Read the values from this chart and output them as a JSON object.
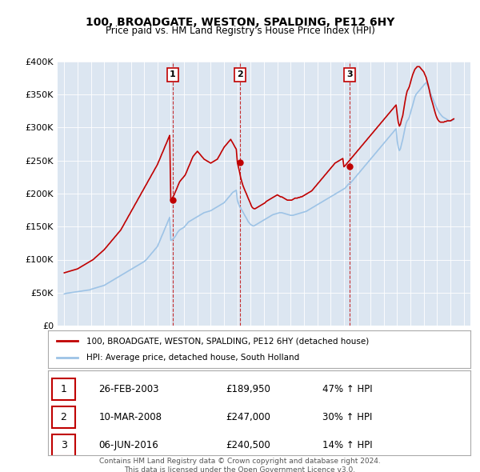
{
  "title": "100, BROADGATE, WESTON, SPALDING, PE12 6HY",
  "subtitle": "Price paid vs. HM Land Registry's House Price Index (HPI)",
  "legend_property": "100, BROADGATE, WESTON, SPALDING, PE12 6HY (detached house)",
  "legend_hpi": "HPI: Average price, detached house, South Holland",
  "footer": "Contains HM Land Registry data © Crown copyright and database right 2024.\nThis data is licensed under the Open Government Licence v3.0.",
  "sales": [
    {
      "num": 1,
      "date": "26-FEB-2003",
      "price": 189950,
      "pct": "47%",
      "dir": "↑"
    },
    {
      "num": 2,
      "date": "10-MAR-2008",
      "price": 247000,
      "pct": "30%",
      "dir": "↑"
    },
    {
      "num": 3,
      "date": "06-JUN-2016",
      "price": 240500,
      "pct": "14%",
      "dir": "↑"
    }
  ],
  "sale_years": [
    2003.15,
    2008.19,
    2016.44
  ],
  "ylim": [
    0,
    400000
  ],
  "yticks": [
    0,
    50000,
    100000,
    150000,
    200000,
    250000,
    300000,
    350000,
    400000
  ],
  "ytick_labels": [
    "£0",
    "£50K",
    "£100K",
    "£150K",
    "£200K",
    "£250K",
    "£300K",
    "£350K",
    "£400K"
  ],
  "xlim_start": 1994.5,
  "xlim_end": 2025.5,
  "bg_color": "#dce6f1",
  "plot_bg_color": "#dce6f1",
  "red_color": "#c00000",
  "blue_color": "#9dc3e6",
  "hpi_data_x": [
    1995.0,
    1995.08,
    1995.17,
    1995.25,
    1995.33,
    1995.42,
    1995.5,
    1995.58,
    1995.67,
    1995.75,
    1995.83,
    1995.92,
    1996.0,
    1996.08,
    1996.17,
    1996.25,
    1996.33,
    1996.42,
    1996.5,
    1996.58,
    1996.67,
    1996.75,
    1996.83,
    1996.92,
    1997.0,
    1997.08,
    1997.17,
    1997.25,
    1997.33,
    1997.42,
    1997.5,
    1997.58,
    1997.67,
    1997.75,
    1997.83,
    1997.92,
    1998.0,
    1998.08,
    1998.17,
    1998.25,
    1998.33,
    1998.42,
    1998.5,
    1998.58,
    1998.67,
    1998.75,
    1998.83,
    1998.92,
    1999.0,
    1999.08,
    1999.17,
    1999.25,
    1999.33,
    1999.42,
    1999.5,
    1999.58,
    1999.67,
    1999.75,
    1999.83,
    1999.92,
    2000.0,
    2000.08,
    2000.17,
    2000.25,
    2000.33,
    2000.42,
    2000.5,
    2000.58,
    2000.67,
    2000.75,
    2000.83,
    2000.92,
    2001.0,
    2001.08,
    2001.17,
    2001.25,
    2001.33,
    2001.42,
    2001.5,
    2001.58,
    2001.67,
    2001.75,
    2001.83,
    2001.92,
    2002.0,
    2002.08,
    2002.17,
    2002.25,
    2002.33,
    2002.42,
    2002.5,
    2002.58,
    2002.67,
    2002.75,
    2002.83,
    2002.92,
    2003.0,
    2003.08,
    2003.17,
    2003.25,
    2003.33,
    2003.42,
    2003.5,
    2003.58,
    2003.67,
    2003.75,
    2003.83,
    2003.92,
    2004.0,
    2004.08,
    2004.17,
    2004.25,
    2004.33,
    2004.42,
    2004.5,
    2004.58,
    2004.67,
    2004.75,
    2004.83,
    2004.92,
    2005.0,
    2005.08,
    2005.17,
    2005.25,
    2005.33,
    2005.42,
    2005.5,
    2005.58,
    2005.67,
    2005.75,
    2005.83,
    2005.92,
    2006.0,
    2006.08,
    2006.17,
    2006.25,
    2006.33,
    2006.42,
    2006.5,
    2006.58,
    2006.67,
    2006.75,
    2006.83,
    2006.92,
    2007.0,
    2007.08,
    2007.17,
    2007.25,
    2007.33,
    2007.42,
    2007.5,
    2007.58,
    2007.67,
    2007.75,
    2007.83,
    2007.92,
    2008.0,
    2008.08,
    2008.17,
    2008.25,
    2008.33,
    2008.42,
    2008.5,
    2008.58,
    2008.67,
    2008.75,
    2008.83,
    2008.92,
    2009.0,
    2009.08,
    2009.17,
    2009.25,
    2009.33,
    2009.42,
    2009.5,
    2009.58,
    2009.67,
    2009.75,
    2009.83,
    2009.92,
    2010.0,
    2010.08,
    2010.17,
    2010.25,
    2010.33,
    2010.42,
    2010.5,
    2010.58,
    2010.67,
    2010.75,
    2010.83,
    2010.92,
    2011.0,
    2011.08,
    2011.17,
    2011.25,
    2011.33,
    2011.42,
    2011.5,
    2011.58,
    2011.67,
    2011.75,
    2011.83,
    2011.92,
    2012.0,
    2012.08,
    2012.17,
    2012.25,
    2012.33,
    2012.42,
    2012.5,
    2012.58,
    2012.67,
    2012.75,
    2012.83,
    2012.92,
    2013.0,
    2013.08,
    2013.17,
    2013.25,
    2013.33,
    2013.42,
    2013.5,
    2013.58,
    2013.67,
    2013.75,
    2013.83,
    2013.92,
    2014.0,
    2014.08,
    2014.17,
    2014.25,
    2014.33,
    2014.42,
    2014.5,
    2014.58,
    2014.67,
    2014.75,
    2014.83,
    2014.92,
    2015.0,
    2015.08,
    2015.17,
    2015.25,
    2015.33,
    2015.42,
    2015.5,
    2015.58,
    2015.67,
    2015.75,
    2015.83,
    2015.92,
    2016.0,
    2016.08,
    2016.17,
    2016.25,
    2016.33,
    2016.42,
    2016.5,
    2016.58,
    2016.67,
    2016.75,
    2016.83,
    2016.92,
    2017.0,
    2017.08,
    2017.17,
    2017.25,
    2017.33,
    2017.42,
    2017.5,
    2017.58,
    2017.67,
    2017.75,
    2017.83,
    2017.92,
    2018.0,
    2018.08,
    2018.17,
    2018.25,
    2018.33,
    2018.42,
    2018.5,
    2018.58,
    2018.67,
    2018.75,
    2018.83,
    2018.92,
    2019.0,
    2019.08,
    2019.17,
    2019.25,
    2019.33,
    2019.42,
    2019.5,
    2019.58,
    2019.67,
    2019.75,
    2019.83,
    2019.92,
    2020.0,
    2020.08,
    2020.17,
    2020.25,
    2020.33,
    2020.42,
    2020.5,
    2020.58,
    2020.67,
    2020.75,
    2020.83,
    2020.92,
    2021.0,
    2021.08,
    2021.17,
    2021.25,
    2021.33,
    2021.42,
    2021.5,
    2021.58,
    2021.67,
    2021.75,
    2021.83,
    2021.92,
    2022.0,
    2022.08,
    2022.17,
    2022.25,
    2022.33,
    2022.42,
    2022.5,
    2022.58,
    2022.67,
    2022.75,
    2022.83,
    2022.92,
    2023.0,
    2023.08,
    2023.17,
    2023.25,
    2023.33,
    2023.42,
    2023.5,
    2023.58,
    2023.67,
    2023.75,
    2023.83,
    2023.92,
    2024.0,
    2024.08,
    2024.17,
    2024.25
  ],
  "hpi_data_y": [
    48000,
    48500,
    49000,
    49200,
    49500,
    49800,
    50000,
    50200,
    50500,
    50800,
    51000,
    51200,
    51500,
    51800,
    52000,
    52200,
    52500,
    52800,
    53000,
    53200,
    53500,
    53800,
    54000,
    54200,
    55000,
    55500,
    56000,
    56500,
    57000,
    57500,
    58000,
    58500,
    59000,
    59500,
    60000,
    60500,
    61000,
    62000,
    63000,
    64000,
    65000,
    66000,
    67000,
    68000,
    69000,
    70000,
    71000,
    72000,
    73000,
    74000,
    75000,
    76000,
    77000,
    78000,
    79000,
    80000,
    81000,
    82000,
    83000,
    84000,
    85000,
    86000,
    87000,
    88000,
    89000,
    90000,
    91000,
    92000,
    93000,
    94000,
    95000,
    96000,
    97000,
    98500,
    100000,
    102000,
    104000,
    106000,
    108000,
    110000,
    112000,
    114000,
    116000,
    118000,
    120000,
    124000,
    128000,
    132000,
    136000,
    140000,
    144000,
    148000,
    152000,
    156000,
    160000,
    164000,
    129000,
    130000,
    131000,
    133000,
    135000,
    138000,
    141000,
    143000,
    145000,
    146000,
    147000,
    148000,
    149000,
    151000,
    153000,
    155000,
    157000,
    158000,
    159000,
    160000,
    161000,
    162000,
    163000,
    164000,
    165000,
    166000,
    167000,
    168000,
    169000,
    170000,
    171000,
    171500,
    172000,
    172500,
    173000,
    173500,
    174000,
    175000,
    176000,
    177000,
    178000,
    179000,
    180000,
    181000,
    182000,
    183000,
    184000,
    185000,
    186000,
    188000,
    190000,
    192000,
    194000,
    196000,
    198000,
    200000,
    202000,
    203000,
    204000,
    205000,
    190000,
    185000,
    180000,
    178000,
    175000,
    172000,
    169000,
    166000,
    163000,
    160000,
    157000,
    155000,
    153000,
    152000,
    151000,
    151000,
    152000,
    153000,
    154000,
    155000,
    156000,
    157000,
    158000,
    159000,
    160000,
    161000,
    162000,
    163000,
    164000,
    165000,
    166000,
    167000,
    168000,
    168500,
    169000,
    169500,
    170000,
    170500,
    171000,
    171000,
    171000,
    170500,
    170000,
    169500,
    169000,
    168500,
    168000,
    167500,
    167000,
    167000,
    167000,
    167500,
    168000,
    168500,
    169000,
    169500,
    170000,
    170500,
    171000,
    171500,
    172000,
    172500,
    173000,
    174000,
    175000,
    176000,
    177000,
    178000,
    179000,
    180000,
    181000,
    182000,
    183000,
    184000,
    185000,
    186000,
    187000,
    188000,
    189000,
    190000,
    191000,
    192000,
    193000,
    194000,
    195000,
    196000,
    197000,
    198000,
    199000,
    200000,
    201000,
    202000,
    203000,
    204000,
    205000,
    206000,
    207000,
    208000,
    210000,
    212000,
    214000,
    215000,
    216000,
    218000,
    220000,
    222000,
    224000,
    226000,
    228000,
    230000,
    232000,
    234000,
    236000,
    238000,
    240000,
    242000,
    244000,
    246000,
    248000,
    250000,
    252000,
    254000,
    256000,
    258000,
    260000,
    262000,
    264000,
    266000,
    268000,
    270000,
    272000,
    274000,
    276000,
    278000,
    280000,
    282000,
    284000,
    286000,
    288000,
    290000,
    292000,
    294000,
    296000,
    298000,
    280000,
    270000,
    265000,
    268000,
    275000,
    282000,
    290000,
    298000,
    306000,
    310000,
    312000,
    316000,
    322000,
    328000,
    334000,
    340000,
    346000,
    350000,
    352000,
    354000,
    356000,
    358000,
    360000,
    362000,
    364000,
    366000,
    368000,
    365000,
    362000,
    358000,
    352000,
    348000,
    344000,
    340000,
    336000,
    332000,
    328000,
    325000,
    322000,
    320000,
    318000,
    316000,
    315000,
    314000,
    313000,
    312000,
    311000,
    310000,
    310000,
    310000,
    311000,
    312000
  ],
  "property_data_x": [
    1995.0,
    1995.08,
    1995.17,
    1995.25,
    1995.33,
    1995.42,
    1995.5,
    1995.58,
    1995.67,
    1995.75,
    1995.83,
    1995.92,
    1996.0,
    1996.08,
    1996.17,
    1996.25,
    1996.33,
    1996.42,
    1996.5,
    1996.58,
    1996.67,
    1996.75,
    1996.83,
    1996.92,
    1997.0,
    1997.08,
    1997.17,
    1997.25,
    1997.33,
    1997.42,
    1997.5,
    1997.58,
    1997.67,
    1997.75,
    1997.83,
    1997.92,
    1998.0,
    1998.08,
    1998.17,
    1998.25,
    1998.33,
    1998.42,
    1998.5,
    1998.58,
    1998.67,
    1998.75,
    1998.83,
    1998.92,
    1999.0,
    1999.08,
    1999.17,
    1999.25,
    1999.33,
    1999.42,
    1999.5,
    1999.58,
    1999.67,
    1999.75,
    1999.83,
    1999.92,
    2000.0,
    2000.08,
    2000.17,
    2000.25,
    2000.33,
    2000.42,
    2000.5,
    2000.58,
    2000.67,
    2000.75,
    2000.83,
    2000.92,
    2001.0,
    2001.08,
    2001.17,
    2001.25,
    2001.33,
    2001.42,
    2001.5,
    2001.58,
    2001.67,
    2001.75,
    2001.83,
    2001.92,
    2002.0,
    2002.08,
    2002.17,
    2002.25,
    2002.33,
    2002.42,
    2002.5,
    2002.58,
    2002.67,
    2002.75,
    2002.83,
    2002.92,
    2003.0,
    2003.08,
    2003.17,
    2003.25,
    2003.33,
    2003.42,
    2003.5,
    2003.58,
    2003.67,
    2003.75,
    2003.83,
    2003.92,
    2004.0,
    2004.08,
    2004.17,
    2004.25,
    2004.33,
    2004.42,
    2004.5,
    2004.58,
    2004.67,
    2004.75,
    2004.83,
    2004.92,
    2005.0,
    2005.08,
    2005.17,
    2005.25,
    2005.33,
    2005.42,
    2005.5,
    2005.58,
    2005.67,
    2005.75,
    2005.83,
    2005.92,
    2006.0,
    2006.08,
    2006.17,
    2006.25,
    2006.33,
    2006.42,
    2006.5,
    2006.58,
    2006.67,
    2006.75,
    2006.83,
    2006.92,
    2007.0,
    2007.08,
    2007.17,
    2007.25,
    2007.33,
    2007.42,
    2007.5,
    2007.58,
    2007.67,
    2007.75,
    2007.83,
    2007.92,
    2008.0,
    2008.08,
    2008.17,
    2008.25,
    2008.33,
    2008.42,
    2008.5,
    2008.58,
    2008.67,
    2008.75,
    2008.83,
    2008.92,
    2009.0,
    2009.08,
    2009.17,
    2009.25,
    2009.33,
    2009.42,
    2009.5,
    2009.58,
    2009.67,
    2009.75,
    2009.83,
    2009.92,
    2010.0,
    2010.08,
    2010.17,
    2010.25,
    2010.33,
    2010.42,
    2010.5,
    2010.58,
    2010.67,
    2010.75,
    2010.83,
    2010.92,
    2011.0,
    2011.08,
    2011.17,
    2011.25,
    2011.33,
    2011.42,
    2011.5,
    2011.58,
    2011.67,
    2011.75,
    2011.83,
    2011.92,
    2012.0,
    2012.08,
    2012.17,
    2012.25,
    2012.33,
    2012.42,
    2012.5,
    2012.58,
    2012.67,
    2012.75,
    2012.83,
    2012.92,
    2013.0,
    2013.08,
    2013.17,
    2013.25,
    2013.33,
    2013.42,
    2013.5,
    2013.58,
    2013.67,
    2013.75,
    2013.83,
    2013.92,
    2014.0,
    2014.08,
    2014.17,
    2014.25,
    2014.33,
    2014.42,
    2014.5,
    2014.58,
    2014.67,
    2014.75,
    2014.83,
    2014.92,
    2015.0,
    2015.08,
    2015.17,
    2015.25,
    2015.33,
    2015.42,
    2015.5,
    2015.58,
    2015.67,
    2015.75,
    2015.83,
    2015.92,
    2016.0,
    2016.08,
    2016.17,
    2016.25,
    2016.33,
    2016.42,
    2016.5,
    2016.58,
    2016.67,
    2016.75,
    2016.83,
    2016.92,
    2017.0,
    2017.08,
    2017.17,
    2017.25,
    2017.33,
    2017.42,
    2017.5,
    2017.58,
    2017.67,
    2017.75,
    2017.83,
    2017.92,
    2018.0,
    2018.08,
    2018.17,
    2018.25,
    2018.33,
    2018.42,
    2018.5,
    2018.58,
    2018.67,
    2018.75,
    2018.83,
    2018.92,
    2019.0,
    2019.08,
    2019.17,
    2019.25,
    2019.33,
    2019.42,
    2019.5,
    2019.58,
    2019.67,
    2019.75,
    2019.83,
    2019.92,
    2020.0,
    2020.08,
    2020.17,
    2020.25,
    2020.33,
    2020.42,
    2020.5,
    2020.58,
    2020.67,
    2020.75,
    2020.83,
    2020.92,
    2021.0,
    2021.08,
    2021.17,
    2021.25,
    2021.33,
    2021.42,
    2021.5,
    2021.58,
    2021.67,
    2021.75,
    2021.83,
    2021.92,
    2022.0,
    2022.08,
    2022.17,
    2022.25,
    2022.33,
    2022.42,
    2022.5,
    2022.58,
    2022.67,
    2022.75,
    2022.83,
    2022.92,
    2023.0,
    2023.08,
    2023.17,
    2023.25,
    2023.33,
    2023.42,
    2023.5,
    2023.58,
    2023.67,
    2023.75,
    2023.83,
    2023.92,
    2024.0,
    2024.08,
    2024.17,
    2024.25
  ],
  "property_data_y": [
    80000,
    80500,
    81000,
    81500,
    82000,
    82500,
    83000,
    83500,
    84000,
    84500,
    85000,
    85500,
    86000,
    87000,
    88000,
    89000,
    90000,
    91000,
    92000,
    93000,
    94000,
    95000,
    96000,
    97000,
    98000,
    99000,
    100000,
    101500,
    103000,
    104500,
    106000,
    107500,
    109000,
    110500,
    112000,
    113500,
    115000,
    117000,
    119000,
    121000,
    123000,
    125000,
    127000,
    129000,
    131000,
    133000,
    135000,
    137000,
    139000,
    141000,
    143000,
    145000,
    148000,
    151000,
    154000,
    157000,
    160000,
    163000,
    166000,
    169000,
    172000,
    175000,
    178000,
    181000,
    184000,
    187000,
    190000,
    193000,
    196000,
    199000,
    202000,
    205000,
    208000,
    211000,
    214000,
    217000,
    220000,
    223000,
    226000,
    229000,
    232000,
    235000,
    238000,
    241000,
    244000,
    248000,
    252000,
    256000,
    260000,
    264000,
    268000,
    272000,
    276000,
    280000,
    284000,
    288000,
    189950,
    192000,
    195000,
    198000,
    202000,
    206000,
    210000,
    214000,
    218000,
    220000,
    222000,
    224000,
    226000,
    228000,
    232000,
    236000,
    240000,
    244000,
    248000,
    252000,
    256000,
    258000,
    260000,
    262000,
    264000,
    262000,
    260000,
    258000,
    256000,
    254000,
    252000,
    251000,
    250000,
    249000,
    248000,
    247000,
    246000,
    247000,
    248000,
    249000,
    250000,
    251000,
    252000,
    255000,
    258000,
    261000,
    264000,
    267000,
    270000,
    272000,
    274000,
    276000,
    278000,
    280000,
    282000,
    279000,
    276000,
    273000,
    270000,
    267000,
    247000,
    240000,
    232000,
    224000,
    218000,
    212000,
    208000,
    204000,
    200000,
    196000,
    192000,
    188000,
    184000,
    180000,
    178000,
    177000,
    177000,
    178000,
    179000,
    180000,
    181000,
    182000,
    183000,
    184000,
    185000,
    186000,
    188000,
    189000,
    190000,
    191000,
    192000,
    193000,
    194000,
    195000,
    196000,
    197000,
    198000,
    197000,
    196000,
    195000,
    195000,
    194000,
    193000,
    192000,
    191000,
    190000,
    190000,
    190000,
    190000,
    190000,
    191000,
    192000,
    193000,
    193000,
    193000,
    194000,
    194000,
    195000,
    195000,
    196000,
    197000,
    198000,
    199000,
    200000,
    201000,
    202000,
    203000,
    204000,
    206000,
    208000,
    210000,
    212000,
    214000,
    216000,
    218000,
    220000,
    222000,
    224000,
    226000,
    228000,
    230000,
    232000,
    234000,
    236000,
    238000,
    240000,
    242000,
    244000,
    246000,
    247000,
    248000,
    249000,
    250000,
    251000,
    252000,
    253000,
    240500,
    242000,
    244000,
    246000,
    248000,
    250000,
    252000,
    254000,
    256000,
    258000,
    260000,
    262000,
    264000,
    266000,
    268000,
    270000,
    272000,
    274000,
    276000,
    278000,
    280000,
    282000,
    284000,
    286000,
    288000,
    290000,
    292000,
    294000,
    296000,
    298000,
    300000,
    302000,
    304000,
    306000,
    308000,
    310000,
    312000,
    314000,
    316000,
    318000,
    320000,
    322000,
    324000,
    326000,
    328000,
    330000,
    332000,
    334000,
    320000,
    308000,
    302000,
    305000,
    312000,
    318000,
    328000,
    338000,
    348000,
    355000,
    358000,
    362000,
    368000,
    374000,
    380000,
    384000,
    388000,
    390000,
    392000,
    392000,
    392000,
    390000,
    388000,
    386000,
    384000,
    380000,
    376000,
    370000,
    364000,
    356000,
    348000,
    342000,
    336000,
    330000,
    324000,
    318000,
    314000,
    311000,
    309000,
    308000,
    308000,
    308000,
    308000,
    309000,
    309000,
    310000,
    310000,
    310000,
    310000,
    311000,
    312000,
    313000
  ]
}
